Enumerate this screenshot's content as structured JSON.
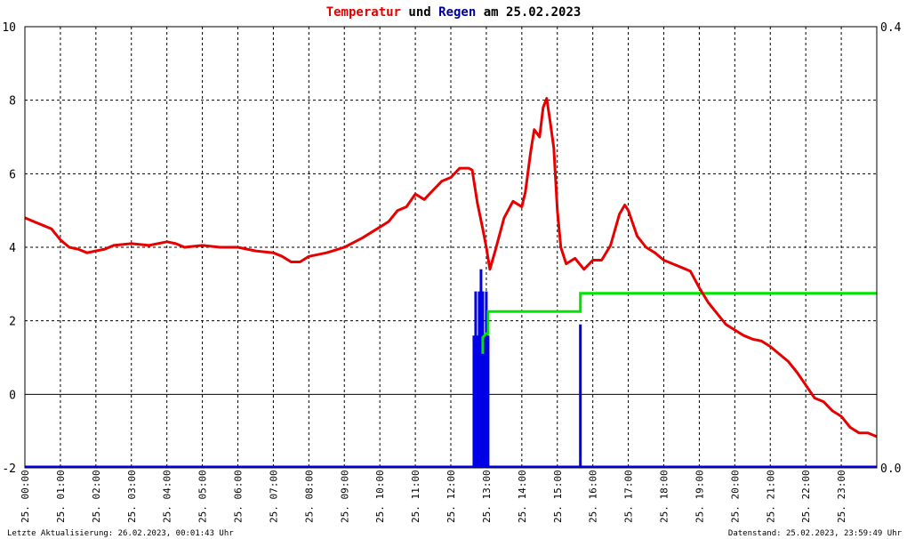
{
  "title": {
    "part1": "Temperatur",
    "part2": " und ",
    "part3": "Regen",
    "part4": " am 25.02.2023",
    "color_temp": "#e60000",
    "color_rain": "#0000a0",
    "color_text": "#000000"
  },
  "footer": {
    "left": "Letzte Aktualisierung: 26.02.2023, 00:01:43 Uhr",
    "right": "Datenstand: 25.02.2023, 23:59:49 Uhr"
  },
  "chart_data": {
    "type": "line",
    "x_unit": "hours",
    "xlim": [
      0,
      24
    ],
    "ylim_left": [
      -2,
      10
    ],
    "ylim_right": [
      0.0,
      0.4
    ],
    "y_ticks_left": [
      "10",
      "8",
      "6",
      "4",
      "2",
      "0",
      "-2"
    ],
    "y_ticks_right": [
      "0.4",
      "0.0"
    ],
    "x_tick_labels": [
      "25. 00:00",
      "25. 01:00",
      "25. 02:00",
      "25. 03:00",
      "25. 04:00",
      "25. 05:00",
      "25. 06:00",
      "25. 07:00",
      "25. 08:00",
      "25. 09:00",
      "25. 10:00",
      "25. 11:00",
      "25. 12:00",
      "25. 13:00",
      "25. 14:00",
      "25. 15:00",
      "25. 16:00",
      "25. 17:00",
      "25. 18:00",
      "25. 19:00",
      "25. 20:00",
      "25. 21:00",
      "25. 22:00",
      "25. 23:00"
    ],
    "grid": true,
    "colors": {
      "temperature": "#e60000",
      "rain_total": "#00e600",
      "rain_rate": "#0000e6",
      "grid": "#000000"
    },
    "series": [
      {
        "key": "temperature",
        "axis": "left",
        "x": [
          0,
          0.25,
          0.5,
          0.75,
          1.0,
          1.25,
          1.5,
          1.75,
          2.0,
          2.25,
          2.5,
          3.0,
          3.5,
          4.0,
          4.25,
          4.5,
          5.0,
          5.5,
          6.0,
          6.5,
          7.0,
          7.25,
          7.5,
          7.75,
          8.0,
          8.5,
          9.0,
          9.5,
          10.0,
          10.25,
          10.5,
          10.75,
          11.0,
          11.25,
          11.5,
          11.75,
          12.0,
          12.25,
          12.5,
          12.6,
          12.75,
          12.9,
          13.0,
          13.1,
          13.25,
          13.5,
          13.75,
          14.0,
          14.1,
          14.25,
          14.35,
          14.5,
          14.6,
          14.7,
          14.8,
          14.9,
          15.0,
          15.1,
          15.25,
          15.5,
          15.75,
          16.0,
          16.25,
          16.5,
          16.75,
          16.9,
          17.0,
          17.25,
          17.5,
          17.75,
          18.0,
          18.25,
          18.5,
          18.75,
          19.0,
          19.25,
          19.5,
          19.75,
          20.0,
          20.25,
          20.5,
          20.75,
          21.0,
          21.25,
          21.5,
          21.75,
          22.0,
          22.25,
          22.5,
          22.75,
          23.0,
          23.25,
          23.5,
          23.75,
          24.0
        ],
        "y": [
          4.8,
          4.7,
          4.6,
          4.5,
          4.2,
          4.0,
          3.95,
          3.85,
          3.9,
          3.95,
          4.05,
          4.1,
          4.05,
          4.15,
          4.1,
          4.0,
          4.05,
          4.0,
          4.0,
          3.9,
          3.85,
          3.75,
          3.6,
          3.6,
          3.75,
          3.85,
          4.0,
          4.25,
          4.55,
          4.7,
          5.0,
          5.1,
          5.45,
          5.3,
          5.55,
          5.8,
          5.9,
          6.15,
          6.15,
          6.1,
          5.2,
          4.5,
          4.0,
          3.4,
          3.9,
          4.8,
          5.25,
          5.1,
          5.5,
          6.6,
          7.2,
          7.0,
          7.8,
          8.05,
          7.4,
          6.7,
          5.0,
          4.0,
          3.55,
          3.7,
          3.4,
          3.65,
          3.65,
          4.05,
          4.9,
          5.15,
          5.0,
          4.3,
          4.0,
          3.85,
          3.65,
          3.55,
          3.45,
          3.35,
          2.9,
          2.5,
          2.2,
          1.9,
          1.75,
          1.6,
          1.5,
          1.45,
          1.3,
          1.1,
          0.9,
          0.6,
          0.25,
          -0.1,
          -0.2,
          -0.45,
          -0.6,
          -0.9,
          -1.05,
          -1.05,
          -1.15
        ]
      },
      {
        "key": "rain_total",
        "axis": "left",
        "x": [
          12.9,
          12.9,
          13.0,
          13.05,
          13.05,
          15.65,
          15.65,
          24.0
        ],
        "y": [
          1.1,
          1.55,
          1.65,
          1.65,
          2.25,
          2.25,
          2.75,
          2.75
        ]
      },
      {
        "key": "rain_rate",
        "axis": "right",
        "type": "bar",
        "x": [
          12.65,
          12.7,
          12.75,
          12.8,
          12.85,
          12.9,
          12.95,
          13.0,
          13.05,
          15.65
        ],
        "y": [
          0.12,
          0.16,
          0.12,
          0.16,
          0.18,
          0.16,
          0.12,
          0.16,
          0.12,
          0.13
        ]
      }
    ]
  }
}
